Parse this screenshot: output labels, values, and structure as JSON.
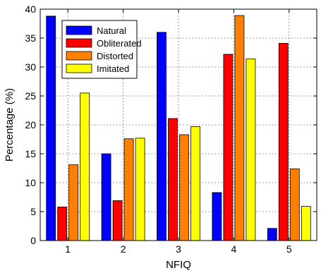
{
  "chart_data": {
    "type": "bar",
    "xlabel": "NFIQ",
    "ylabel": "Percentage (%)",
    "ylim": [
      0,
      40
    ],
    "yticks": [
      0,
      5,
      10,
      15,
      20,
      25,
      30,
      35,
      40
    ],
    "categories": [
      "1",
      "2",
      "3",
      "4",
      "5"
    ],
    "grid": true,
    "legend_position": "top-left",
    "series": [
      {
        "name": "Natural",
        "color": "#0000ff",
        "values": [
          38.8,
          15.0,
          36.0,
          8.3,
          2.1
        ]
      },
      {
        "name": "Obliterated",
        "color": "#ff0000",
        "values": [
          5.8,
          6.9,
          21.1,
          32.2,
          34.1
        ]
      },
      {
        "name": "Distorted",
        "color": "#ff8000",
        "values": [
          13.1,
          17.6,
          18.3,
          38.9,
          12.4
        ]
      },
      {
        "name": "Imitated",
        "color": "#ffff00",
        "values": [
          25.5,
          17.7,
          19.7,
          31.4,
          5.9
        ]
      }
    ]
  }
}
